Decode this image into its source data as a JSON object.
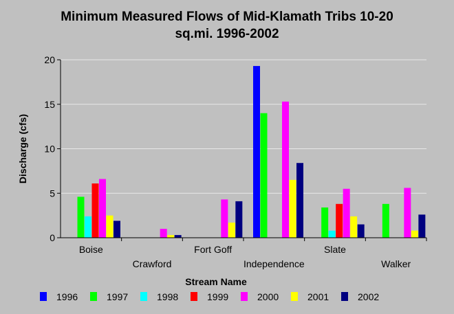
{
  "chart_data": {
    "type": "bar",
    "title_line1": "Minimum Measured Flows of Mid-Klamath Tribs 10-20",
    "title_line2": "sq.mi. 1996-2002",
    "xlabel": "Stream Name",
    "ylabel": "Discharge (cfs)",
    "ylim": [
      0,
      20
    ],
    "yticks": [
      0,
      5,
      10,
      15,
      20
    ],
    "grid": true,
    "legend_position": "bottom",
    "categories": [
      "Boise",
      "Crawford",
      "Fort Goff",
      "Independence",
      "Slate",
      "Walker"
    ],
    "series": [
      {
        "name": "1996",
        "color": "#0000ff",
        "values": [
          null,
          null,
          null,
          19.3,
          null,
          null
        ]
      },
      {
        "name": "1997",
        "color": "#00ff00",
        "values": [
          4.6,
          null,
          null,
          14.0,
          3.4,
          3.8
        ]
      },
      {
        "name": "1998",
        "color": "#00ffff",
        "values": [
          2.4,
          null,
          null,
          null,
          0.8,
          null
        ]
      },
      {
        "name": "1999",
        "color": "#ff0000",
        "values": [
          6.1,
          null,
          null,
          null,
          3.8,
          null
        ]
      },
      {
        "name": "2000",
        "color": "#ff00ff",
        "values": [
          6.6,
          1.0,
          4.3,
          15.3,
          5.5,
          5.6
        ]
      },
      {
        "name": "2001",
        "color": "#ffff00",
        "values": [
          2.5,
          0.3,
          1.7,
          6.5,
          2.4,
          0.8
        ]
      },
      {
        "name": "2002",
        "color": "#000080",
        "values": [
          1.9,
          0.3,
          4.1,
          8.4,
          1.5,
          2.6
        ]
      }
    ]
  }
}
